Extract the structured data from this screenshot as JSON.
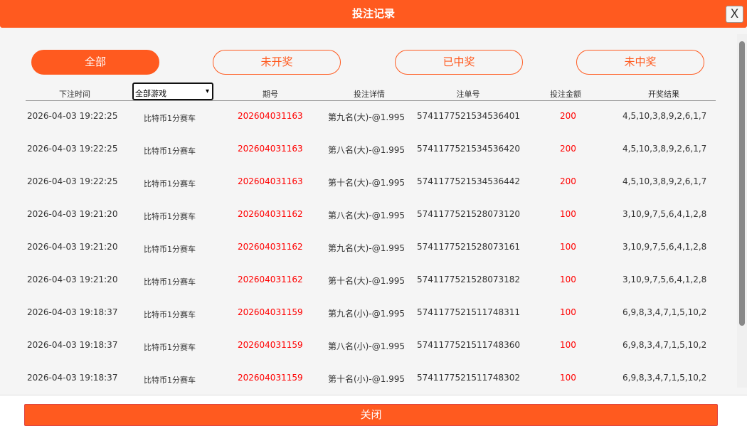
{
  "title": "投注记录",
  "close_x": "X",
  "tabs": [
    {
      "label": "全部",
      "active": true
    },
    {
      "label": "未开奖"
    },
    {
      "label": "已中奖"
    },
    {
      "label": "未中奖"
    }
  ],
  "columns": {
    "time": "下注时间",
    "game_select": "全部游戏",
    "issue": "期号",
    "detail": "投注详情",
    "order": "注单号",
    "amount": "投注金额",
    "result": "开奖结果"
  },
  "rows": [
    {
      "time": "2026-04-03 19:22:25",
      "game": "比特币1分赛车",
      "issue": "202604031163",
      "detail": "第九名(大)-@1.995",
      "order": "5741177521534536401",
      "amount": "200",
      "result": "4,5,10,3,8,9,2,6,1,7"
    },
    {
      "time": "2026-04-03 19:22:25",
      "game": "比特币1分赛车",
      "issue": "202604031163",
      "detail": "第八名(大)-@1.995",
      "order": "5741177521534536420",
      "amount": "200",
      "result": "4,5,10,3,8,9,2,6,1,7"
    },
    {
      "time": "2026-04-03 19:22:25",
      "game": "比特币1分赛车",
      "issue": "202604031163",
      "detail": "第十名(大)-@1.995",
      "order": "5741177521534536442",
      "amount": "200",
      "result": "4,5,10,3,8,9,2,6,1,7"
    },
    {
      "time": "2026-04-03 19:21:20",
      "game": "比特币1分赛车",
      "issue": "202604031162",
      "detail": "第八名(大)-@1.995",
      "order": "5741177521528073120",
      "amount": "100",
      "result": "3,10,9,7,5,6,4,1,2,8"
    },
    {
      "time": "2026-04-03 19:21:20",
      "game": "比特币1分赛车",
      "issue": "202604031162",
      "detail": "第九名(大)-@1.995",
      "order": "5741177521528073161",
      "amount": "100",
      "result": "3,10,9,7,5,6,4,1,2,8"
    },
    {
      "time": "2026-04-03 19:21:20",
      "game": "比特币1分赛车",
      "issue": "202604031162",
      "detail": "第十名(大)-@1.995",
      "order": "5741177521528073182",
      "amount": "100",
      "result": "3,10,9,7,5,6,4,1,2,8"
    },
    {
      "time": "2026-04-03 19:18:37",
      "game": "比特币1分赛车",
      "issue": "202604031159",
      "detail": "第九名(小)-@1.995",
      "order": "5741177521511748311",
      "amount": "100",
      "result": "6,9,8,3,4,7,1,5,10,2"
    },
    {
      "time": "2026-04-03 19:18:37",
      "game": "比特币1分赛车",
      "issue": "202604031159",
      "detail": "第八名(小)-@1.995",
      "order": "5741177521511748360",
      "amount": "100",
      "result": "6,9,8,3,4,7,1,5,10,2"
    },
    {
      "time": "2026-04-03 19:18:37",
      "game": "比特币1分赛车",
      "issue": "202604031159",
      "detail": "第十名(小)-@1.995",
      "order": "5741177521511748302",
      "amount": "100",
      "result": "6,9,8,3,4,7,1,5,10,2"
    }
  ],
  "close_button": "关闭",
  "colors": {
    "accent": "#ff5a1f",
    "highlight": "#ff0000"
  }
}
